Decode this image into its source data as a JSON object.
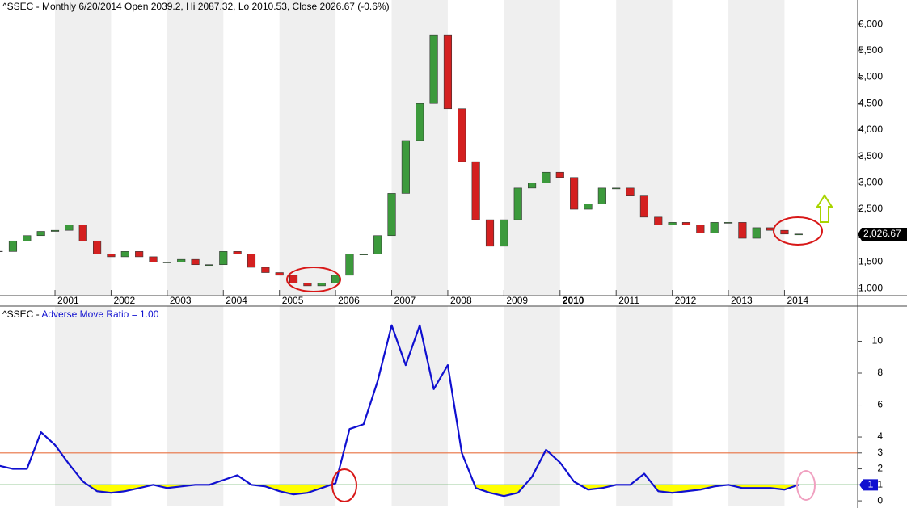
{
  "chart_data": [
    {
      "type": "candlestick",
      "title": "^SSEC - Monthly 6/20/2014 Open 2039.2, Hi 2087.32, Lo 2010.53, Close 2026.67 (-0.6%)",
      "x": [
        2000,
        2000.25,
        2000.5,
        2000.75,
        2001,
        2001.25,
        2001.5,
        2001.75,
        2002,
        2002.25,
        2002.5,
        2002.75,
        2003,
        2003.25,
        2003.5,
        2003.75,
        2004,
        2004.25,
        2004.5,
        2004.75,
        2005,
        2005.25,
        2005.5,
        2005.75,
        2006,
        2006.25,
        2006.5,
        2006.75,
        2007,
        2007.25,
        2007.5,
        2007.75,
        2008,
        2008.25,
        2008.5,
        2008.75,
        2009,
        2009.25,
        2009.5,
        2009.75,
        2010,
        2010.25,
        2010.5,
        2010.75,
        2011,
        2011.25,
        2011.5,
        2011.75,
        2012,
        2012.25,
        2012.5,
        2012.75,
        2013,
        2013.25,
        2013.5,
        2013.75,
        2014,
        2014.25
      ],
      "values": [
        1700,
        1900,
        2000,
        2080,
        2100,
        2200,
        1900,
        1650,
        1600,
        1700,
        1600,
        1500,
        1500,
        1550,
        1450,
        1450,
        1700,
        1650,
        1400,
        1300,
        1250,
        1100,
        1050,
        1100,
        1250,
        1650,
        1650,
        2000,
        2800,
        3800,
        4500,
        5800,
        4400,
        3400,
        2300,
        1800,
        2300,
        2900,
        3000,
        3200,
        3100,
        2500,
        2600,
        2900,
        2900,
        2750,
        2350,
        2200,
        2250,
        2200,
        2050,
        2250,
        2250,
        1950,
        2150,
        2100,
        2030,
        2030
      ],
      "up_color": "#3c9a3c",
      "down_color": "#d42020",
      "xlim": [
        2000.02,
        2015.29
      ],
      "xticks": [
        2001,
        2002,
        2003,
        2004,
        2005,
        2006,
        2007,
        2008,
        2009,
        2010,
        2011,
        2012,
        2013,
        2014
      ],
      "emphasized_xtick": 2010,
      "ylim": [
        880,
        6460
      ],
      "yticks": [
        {
          "value": 1000,
          "label": "1,000"
        },
        {
          "value": 1500,
          "label": "1,500"
        },
        {
          "value": 2000,
          "label": "2,000"
        },
        {
          "value": 2500,
          "label": "2,500"
        },
        {
          "value": 3000,
          "label": "3,000"
        },
        {
          "value": 3500,
          "label": "3,500"
        },
        {
          "value": 4000,
          "label": "4,000"
        },
        {
          "value": 4500,
          "label": "4,500"
        },
        {
          "value": 5000,
          "label": "5,000"
        },
        {
          "value": 5500,
          "label": "5,500"
        },
        {
          "value": 6000,
          "label": "6,000"
        }
      ],
      "last_price": {
        "value": 2026.67,
        "label": "2,026.67"
      }
    },
    {
      "type": "line",
      "title_symbol": "^SSEC - ",
      "title": "Adverse Move Ratio = 1.00",
      "x": [
        2000,
        2000.25,
        2000.5,
        2000.75,
        2001,
        2001.25,
        2001.5,
        2001.75,
        2002,
        2002.25,
        2002.5,
        2002.75,
        2003,
        2003.25,
        2003.5,
        2003.75,
        2004,
        2004.25,
        2004.5,
        2004.75,
        2005,
        2005.25,
        2005.5,
        2005.75,
        2006,
        2006.25,
        2006.5,
        2006.75,
        2007,
        2007.25,
        2007.5,
        2007.75,
        2008,
        2008.25,
        2008.5,
        2008.75,
        2009,
        2009.25,
        2009.5,
        2009.75,
        2010,
        2010.25,
        2010.5,
        2010.75,
        2011,
        2011.25,
        2011.5,
        2011.75,
        2012,
        2012.25,
        2012.5,
        2012.75,
        2013,
        2013.25,
        2013.5,
        2013.75,
        2014,
        2014.25
      ],
      "values": [
        2.2,
        2.0,
        2.0,
        4.3,
        3.5,
        2.3,
        1.2,
        0.6,
        0.5,
        0.6,
        0.8,
        1.0,
        0.8,
        0.9,
        1.0,
        1.0,
        1.3,
        1.6,
        1.0,
        0.9,
        0.6,
        0.4,
        0.5,
        0.8,
        1.1,
        4.5,
        4.8,
        7.5,
        11.0,
        8.5,
        11.0,
        7.0,
        8.5,
        3.0,
        0.8,
        0.5,
        0.3,
        0.5,
        1.5,
        3.2,
        2.4,
        1.2,
        0.7,
        0.8,
        1.0,
        1.0,
        1.7,
        0.6,
        0.5,
        0.6,
        0.7,
        0.9,
        1.0,
        0.8,
        0.8,
        0.8,
        0.7,
        1.0
      ],
      "color": "#1010d0",
      "fill_color": "#ffff00",
      "xlim": [
        2000.02,
        2015.29
      ],
      "ylim": [
        -0.35,
        12.2
      ],
      "yticks": [
        0,
        1,
        2,
        3,
        4,
        6,
        8,
        10
      ],
      "hlines": [
        {
          "value": 3,
          "color": "#e87040"
        },
        {
          "value": 1,
          "color": "#3a9a3a"
        }
      ],
      "last_value": 1
    }
  ]
}
